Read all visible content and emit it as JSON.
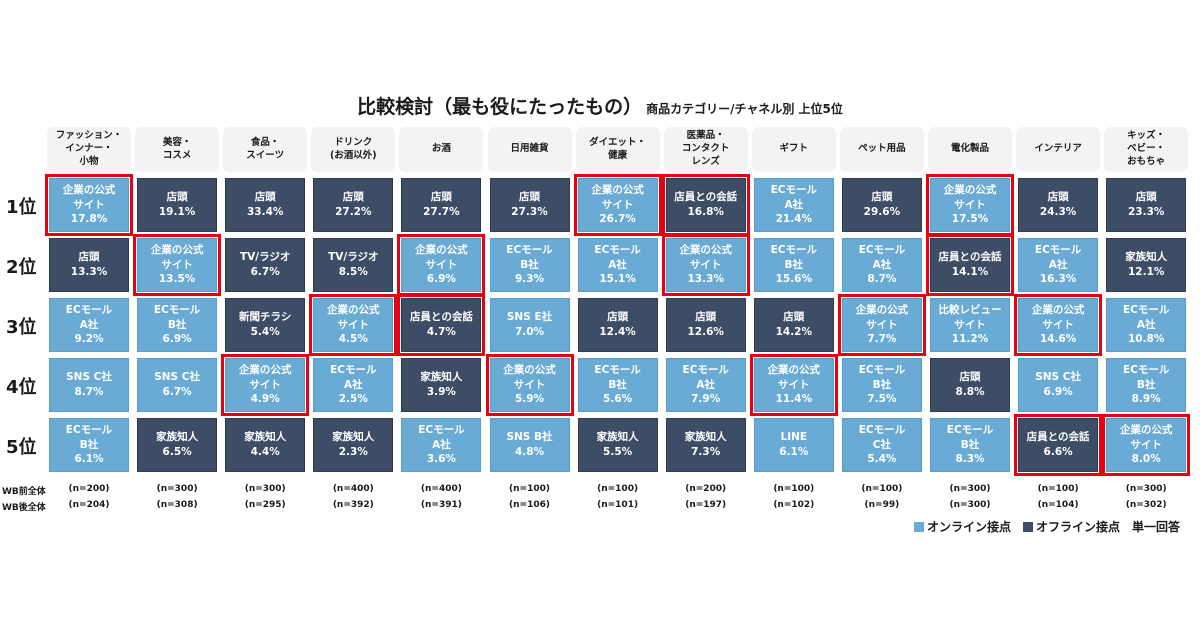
{
  "title": "比較検討（最も役にたったもの）",
  "subtitle": "商品カテゴリー/チャネル別 上位5位",
  "colors": {
    "online": "#6aabd6",
    "offline": "#3e4d66",
    "highlight": "#e60012"
  },
  "legend": {
    "online": "オンライン接点",
    "offline": "オフライン接点",
    "note": "単一回答"
  },
  "n_labels": {
    "before": "WB前全体",
    "after": "WB後全体"
  },
  "chart_data": {
    "type": "table",
    "title": "比較検討（最も役にたったもの） 商品カテゴリー/チャネル別 上位5位",
    "rank_labels": [
      "1位",
      "2位",
      "3位",
      "4位",
      "5位"
    ],
    "categories": [
      {
        "name": "ファッション・\nインナー・\n小物",
        "n_before": "(n=200)",
        "n_after": "(n=204)",
        "ranks": [
          {
            "label": "企業の公式\nサイト",
            "value": 17.8,
            "type": "online",
            "highlight": true
          },
          {
            "label": "店頭",
            "value": 13.3,
            "type": "offline",
            "highlight": false
          },
          {
            "label": "ECモール\nA社",
            "value": 9.2,
            "type": "online",
            "highlight": false
          },
          {
            "label": "SNS C社",
            "value": 8.7,
            "type": "online",
            "highlight": false
          },
          {
            "label": "ECモール\nB社",
            "value": 6.1,
            "type": "online",
            "highlight": false
          }
        ]
      },
      {
        "name": "美容・\nコスメ",
        "n_before": "(n=300)",
        "n_after": "(n=308)",
        "ranks": [
          {
            "label": "店頭",
            "value": 19.1,
            "type": "offline",
            "highlight": false
          },
          {
            "label": "企業の公式\nサイト",
            "value": 13.5,
            "type": "online",
            "highlight": true
          },
          {
            "label": "ECモール\nB社",
            "value": 6.9,
            "type": "online",
            "highlight": false
          },
          {
            "label": "SNS C社",
            "value": 6.7,
            "type": "online",
            "highlight": false
          },
          {
            "label": "家族知人",
            "value": 6.5,
            "type": "offline",
            "highlight": false
          }
        ]
      },
      {
        "name": "食品・\nスイーツ",
        "n_before": "(n=300)",
        "n_after": "(n=295)",
        "ranks": [
          {
            "label": "店頭",
            "value": 33.4,
            "type": "offline",
            "highlight": false
          },
          {
            "label": "TV/ラジオ",
            "value": 6.7,
            "type": "offline",
            "highlight": false
          },
          {
            "label": "新聞チラシ",
            "value": 5.4,
            "type": "offline",
            "highlight": false
          },
          {
            "label": "企業の公式\nサイト",
            "value": 4.9,
            "type": "online",
            "highlight": true
          },
          {
            "label": "家族知人",
            "value": 4.4,
            "type": "offline",
            "highlight": false
          }
        ]
      },
      {
        "name": "ドリンク\n(お酒以外)",
        "n_before": "(n=400)",
        "n_after": "(n=392)",
        "ranks": [
          {
            "label": "店頭",
            "value": 27.2,
            "type": "offline",
            "highlight": false
          },
          {
            "label": "TV/ラジオ",
            "value": 8.5,
            "type": "offline",
            "highlight": false
          },
          {
            "label": "企業の公式\nサイト",
            "value": 4.5,
            "type": "online",
            "highlight": true
          },
          {
            "label": "ECモール\nA社",
            "value": 2.5,
            "type": "online",
            "highlight": false
          },
          {
            "label": "家族知人",
            "value": 2.3,
            "type": "offline",
            "highlight": false
          }
        ]
      },
      {
        "name": "お酒",
        "n_before": "(n=400)",
        "n_after": "(n=391)",
        "ranks": [
          {
            "label": "店頭",
            "value": 27.7,
            "type": "offline",
            "highlight": false
          },
          {
            "label": "企業の公式\nサイト",
            "value": 6.9,
            "type": "online",
            "highlight": true
          },
          {
            "label": "店員との会話",
            "value": 4.7,
            "type": "offline",
            "highlight": true
          },
          {
            "label": "家族知人",
            "value": 3.9,
            "type": "offline",
            "highlight": false
          },
          {
            "label": "ECモール\nA社",
            "value": 3.6,
            "type": "online",
            "highlight": false
          }
        ]
      },
      {
        "name": "日用雑貨",
        "n_before": "(n=100)",
        "n_after": "(n=106)",
        "ranks": [
          {
            "label": "店頭",
            "value": 27.3,
            "type": "offline",
            "highlight": false
          },
          {
            "label": "ECモール\nB社",
            "value": 9.3,
            "type": "online",
            "highlight": false
          },
          {
            "label": "SNS E社",
            "value": 7.0,
            "type": "online",
            "highlight": false
          },
          {
            "label": "企業の公式\nサイト",
            "value": 5.9,
            "type": "online",
            "highlight": true
          },
          {
            "label": "SNS B社",
            "value": 4.8,
            "type": "online",
            "highlight": false
          }
        ]
      },
      {
        "name": "ダイエット・\n健康",
        "n_before": "(n=100)",
        "n_after": "(n=101)",
        "ranks": [
          {
            "label": "企業の公式\nサイト",
            "value": 26.7,
            "type": "online",
            "highlight": true
          },
          {
            "label": "ECモール\nA社",
            "value": 15.1,
            "type": "online",
            "highlight": false
          },
          {
            "label": "店頭",
            "value": 12.4,
            "type": "offline",
            "highlight": false
          },
          {
            "label": "ECモール\nB社",
            "value": 5.6,
            "type": "online",
            "highlight": false
          },
          {
            "label": "家族知人",
            "value": 5.5,
            "type": "offline",
            "highlight": false
          }
        ]
      },
      {
        "name": "医薬品・\nコンタクト\nレンズ",
        "n_before": "(n=200)",
        "n_after": "(n=197)",
        "ranks": [
          {
            "label": "店員との会話",
            "value": 16.8,
            "type": "offline",
            "highlight": true
          },
          {
            "label": "企業の公式\nサイト",
            "value": 13.3,
            "type": "online",
            "highlight": true
          },
          {
            "label": "店頭",
            "value": 12.6,
            "type": "offline",
            "highlight": false
          },
          {
            "label": "ECモール\nA社",
            "value": 7.9,
            "type": "online",
            "highlight": false
          },
          {
            "label": "家族知人",
            "value": 7.3,
            "type": "offline",
            "highlight": false
          }
        ]
      },
      {
        "name": "ギフト",
        "n_before": "(n=100)",
        "n_after": "(n=102)",
        "ranks": [
          {
            "label": "ECモール\nA社",
            "value": 21.4,
            "type": "online",
            "highlight": false
          },
          {
            "label": "ECモール\nB社",
            "value": 15.6,
            "type": "online",
            "highlight": false
          },
          {
            "label": "店頭",
            "value": 14.2,
            "type": "offline",
            "highlight": false
          },
          {
            "label": "企業の公式\nサイト",
            "value": 11.4,
            "type": "online",
            "highlight": true
          },
          {
            "label": "LINE",
            "value": 6.1,
            "type": "online",
            "highlight": false
          }
        ]
      },
      {
        "name": "ペット用品",
        "n_before": "(n=100)",
        "n_after": "(n=99)",
        "ranks": [
          {
            "label": "店頭",
            "value": 29.6,
            "type": "offline",
            "highlight": false
          },
          {
            "label": "ECモール\nA社",
            "value": 8.7,
            "type": "online",
            "highlight": false
          },
          {
            "label": "企業の公式\nサイト",
            "value": 7.7,
            "type": "online",
            "highlight": true
          },
          {
            "label": "ECモール\nB社",
            "value": 7.5,
            "type": "online",
            "highlight": false
          },
          {
            "label": "ECモール\nC社",
            "value": 5.4,
            "type": "online",
            "highlight": false
          }
        ]
      },
      {
        "name": "電化製品",
        "n_before": "(n=300)",
        "n_after": "(n=300)",
        "ranks": [
          {
            "label": "企業の公式\nサイト",
            "value": 17.5,
            "type": "online",
            "highlight": true
          },
          {
            "label": "店員との会話",
            "value": 14.1,
            "type": "offline",
            "highlight": true
          },
          {
            "label": "比較レビュー\nサイト",
            "value": 11.2,
            "type": "online",
            "highlight": false
          },
          {
            "label": "店頭",
            "value": 8.8,
            "type": "offline",
            "highlight": false
          },
          {
            "label": "ECモール\nB社",
            "value": 8.3,
            "type": "online",
            "highlight": false
          }
        ]
      },
      {
        "name": "インテリア",
        "n_before": "(n=100)",
        "n_after": "(n=104)",
        "ranks": [
          {
            "label": "店頭",
            "value": 24.3,
            "type": "offline",
            "highlight": false
          },
          {
            "label": "ECモール\nA社",
            "value": 16.3,
            "type": "online",
            "highlight": false
          },
          {
            "label": "企業の公式\nサイト",
            "value": 14.6,
            "type": "online",
            "highlight": true
          },
          {
            "label": "SNS C社",
            "value": 6.9,
            "type": "online",
            "highlight": false
          },
          {
            "label": "店員との会話",
            "value": 6.6,
            "type": "offline",
            "highlight": true
          }
        ]
      },
      {
        "name": "キッズ・\nベビー・\nおもちゃ",
        "n_before": "(n=300)",
        "n_after": "(n=302)",
        "ranks": [
          {
            "label": "店頭",
            "value": 23.3,
            "type": "offline",
            "highlight": false
          },
          {
            "label": "家族知人",
            "value": 12.1,
            "type": "offline",
            "highlight": false
          },
          {
            "label": "ECモール\nA社",
            "value": 10.8,
            "type": "online",
            "highlight": false
          },
          {
            "label": "ECモール\nB社",
            "value": 8.9,
            "type": "online",
            "highlight": false
          },
          {
            "label": "企業の公式\nサイト",
            "value": 8.0,
            "type": "online",
            "highlight": true
          }
        ]
      }
    ]
  }
}
